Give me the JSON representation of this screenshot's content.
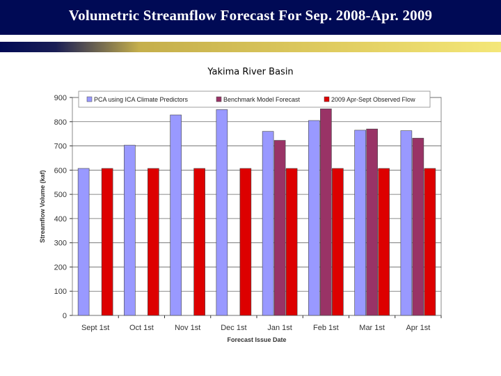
{
  "header": {
    "title": "Volumetric Streamflow Forecast For Sep. 2008-Apr. 2009",
    "bg_color": "#000a55"
  },
  "subtitle": "Yakima River Basin",
  "chart_data": {
    "type": "bar",
    "title": "",
    "xlabel": "Forecast Issue Date",
    "ylabel": "Streamflow Volume (kaf)",
    "ylim": [
      0,
      900
    ],
    "yticks": [
      0,
      100,
      200,
      300,
      400,
      500,
      600,
      700,
      800,
      900
    ],
    "grid": true,
    "legend_position": "top",
    "categories": [
      "Sept 1st",
      "Oct 1st",
      "Nov 1st",
      "Dec 1st",
      "Jan 1st",
      "Feb 1st",
      "Mar 1st",
      "Apr 1st"
    ],
    "series": [
      {
        "name": "PCA using ICA Climate Predictors",
        "color": "#9999ff",
        "values": [
          607,
          703,
          828,
          850,
          760,
          805,
          765,
          763
        ]
      },
      {
        "name": "Benchmark Model Forecast",
        "color": "#993366",
        "values": [
          null,
          null,
          null,
          null,
          723,
          853,
          770,
          732
        ]
      },
      {
        "name": "2009 Apr-Sept Observed Flow",
        "color": "#dd0000",
        "values": [
          607,
          607,
          607,
          607,
          607,
          607,
          607,
          607
        ]
      }
    ]
  }
}
